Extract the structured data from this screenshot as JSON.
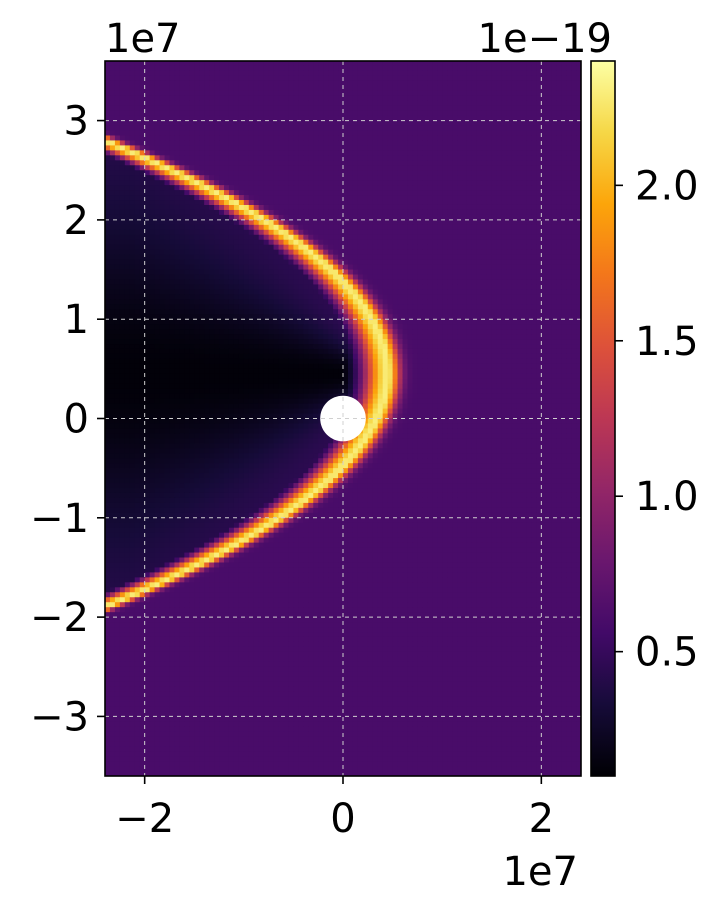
{
  "chart_data": {
    "type": "heatmap",
    "title": "",
    "xlabel": "",
    "ylabel": "",
    "colorbar_label": "",
    "colormap": "inferno",
    "grid": true,
    "xlim": [
      -24000000.0,
      24000000.0
    ],
    "ylim": [
      -36000000.0,
      36000000.0
    ],
    "x_offset_text": "1e7",
    "x_offset_text_top": "1e7",
    "colorbar_offset_text": "1e−19",
    "x_ticks": [
      {
        "value": -20000000.0,
        "label": "−2"
      },
      {
        "value": 0,
        "label": "0"
      },
      {
        "value": 20000000.0,
        "label": "2"
      }
    ],
    "y_ticks": [
      {
        "value": 30000000.0,
        "label": "3"
      },
      {
        "value": 20000000.0,
        "label": "2"
      },
      {
        "value": 10000000.0,
        "label": "1"
      },
      {
        "value": 0,
        "label": "0"
      },
      {
        "value": -10000000.0,
        "label": "−1"
      },
      {
        "value": -20000000.0,
        "label": "−2"
      },
      {
        "value": -30000000.0,
        "label": "−3"
      }
    ],
    "colorbar_range": [
      1e-20,
      2.4e-19
    ],
    "colorbar_ticks": [
      {
        "value": 5e-20,
        "label": "0.5"
      },
      {
        "value": 1e-19,
        "label": "1.0"
      },
      {
        "value": 1.5e-19,
        "label": "1.5"
      },
      {
        "value": 2e-19,
        "label": "2.0"
      }
    ],
    "field": {
      "background_value": 6e-20,
      "shock_peak_value": 2.3e-19,
      "wake_min_value": 1.2e-20,
      "shock_nose_x": 4500000.0,
      "shock_left_edge_x": -24000000.0,
      "shock_upper_y_at_left_edge": 28000000.0,
      "shock_lower_y_at_left_edge": -19000000.0,
      "obstacle_center": [
        0,
        0
      ],
      "obstacle_radius": 2300000.0,
      "obstacle_fill": "#ffffff"
    },
    "colors": {
      "grid": "#d0d0d0",
      "axes": "#000000"
    }
  }
}
